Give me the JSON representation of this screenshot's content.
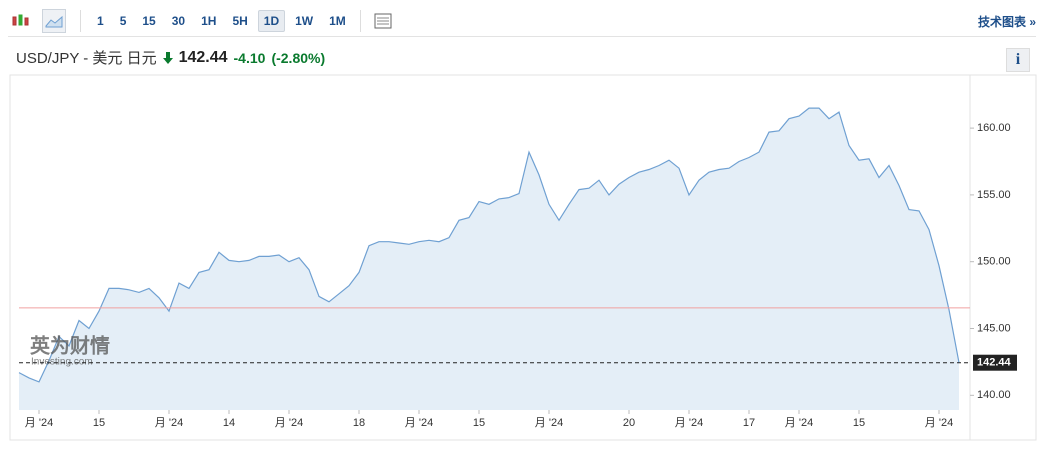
{
  "toolbar": {
    "intervals": [
      "1",
      "5",
      "15",
      "30",
      "1H",
      "5H",
      "1D",
      "1W",
      "1M"
    ],
    "active_interval": 6,
    "link": "技术图表 »"
  },
  "header": {
    "symbol": "USD/JPY - 美元 日元",
    "price": "142.44",
    "change": "-4.10",
    "change_percent": "(-2.80%)",
    "info": "i"
  },
  "watermark": {
    "brand": "英为财情",
    "site": "Investing.com"
  },
  "chart_data": {
    "type": "area",
    "color": "#6fa0d2",
    "fill": "#e4eef7",
    "categories": [
      null,
      null,
      "月 '24",
      null,
      null,
      null,
      null,
      null,
      "15",
      null,
      null,
      null,
      null,
      null,
      null,
      "月 '24",
      null,
      null,
      null,
      null,
      null,
      "14",
      null,
      null,
      null,
      null,
      null,
      "月 '24",
      null,
      null,
      null,
      null,
      null,
      null,
      "18",
      null,
      null,
      null,
      null,
      null,
      "月 '24",
      null,
      null,
      null,
      null,
      null,
      "15",
      null,
      null,
      null,
      null,
      null,
      null,
      "月 '24",
      null,
      null,
      null,
      null,
      null,
      null,
      null,
      "20",
      null,
      null,
      null,
      null,
      null,
      "月 '24",
      null,
      null,
      null,
      null,
      null,
      "17",
      null,
      null,
      null,
      null,
      "月 '24",
      null,
      null,
      null,
      null,
      null,
      "15",
      null,
      null,
      null,
      null,
      null,
      null,
      null,
      "月 '24",
      null,
      null
    ],
    "values": [
      141.7,
      141.3,
      141.0,
      142.6,
      144.4,
      143.7,
      145.6,
      145.0,
      146.3,
      148.0,
      148.0,
      147.9,
      147.7,
      148.0,
      147.3,
      146.3,
      148.4,
      148.0,
      149.2,
      149.4,
      150.7,
      150.1,
      150.0,
      150.1,
      150.4,
      150.4,
      150.5,
      150.0,
      150.3,
      149.4,
      147.4,
      147.0,
      147.6,
      148.2,
      149.2,
      151.2,
      151.5,
      151.5,
      151.4,
      151.3,
      151.5,
      151.6,
      151.5,
      151.8,
      153.1,
      153.3,
      154.5,
      154.3,
      154.7,
      154.8,
      155.1,
      158.2,
      156.5,
      154.3,
      153.1,
      154.3,
      155.4,
      155.5,
      156.1,
      155.0,
      155.8,
      156.3,
      156.7,
      156.9,
      157.2,
      157.6,
      157.0,
      155.0,
      156.1,
      156.7,
      156.9,
      157.0,
      157.5,
      157.8,
      158.2,
      159.7,
      159.8,
      160.7,
      160.9,
      161.5,
      161.5,
      160.7,
      161.2,
      158.7,
      157.6,
      157.7,
      156.3,
      157.2,
      155.7,
      153.9,
      153.8,
      152.4,
      149.7,
      146.4,
      142.44
    ],
    "last_value": 142.44,
    "previous_close": 146.54,
    "ylim": [
      138.9,
      163.6
    ],
    "yticks": [
      {
        "value": 140,
        "label": "140.00"
      },
      {
        "value": 145,
        "label": "145.00"
      },
      {
        "value": 150,
        "label": "150.00"
      },
      {
        "value": 155,
        "label": "155.00"
      },
      {
        "value": 160,
        "label": "160.00"
      }
    ],
    "grid": false
  }
}
